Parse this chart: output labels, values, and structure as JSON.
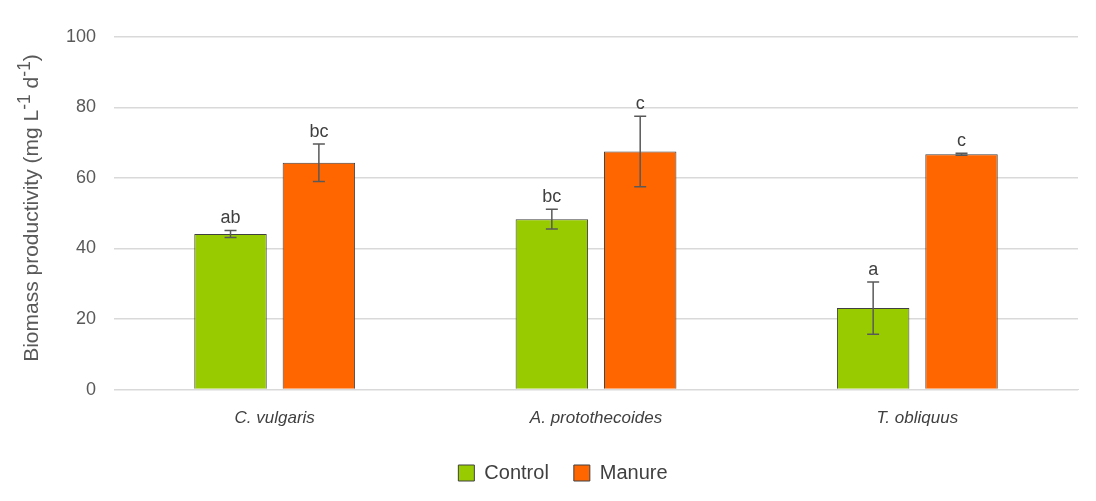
{
  "chart_data": {
    "type": "bar",
    "ylabel": "Biomass productivity (mg L$^{-1}$ d$^{-1}$)",
    "categories": [
      "C. vulgaris",
      "A. protothecoides",
      "T. obliquus"
    ],
    "series": [
      {
        "name": "Control",
        "color": "#99cc00",
        "values": [
          44.1,
          48.3,
          23.1
        ],
        "errors": [
          1.0,
          2.8,
          7.4
        ]
      },
      {
        "name": "Manure",
        "color": "#ff6600",
        "values": [
          64.3,
          67.5,
          66.7
        ],
        "errors": [
          5.3,
          10,
          0.3
        ]
      }
    ],
    "ylim": [
      0,
      100
    ],
    "yticks": [
      0,
      20,
      40,
      60,
      80,
      100
    ],
    "grid": "y",
    "legend": "bottom",
    "annotations": [
      "ab",
      "bc",
      "bc",
      "c",
      "a",
      "c"
    ]
  }
}
